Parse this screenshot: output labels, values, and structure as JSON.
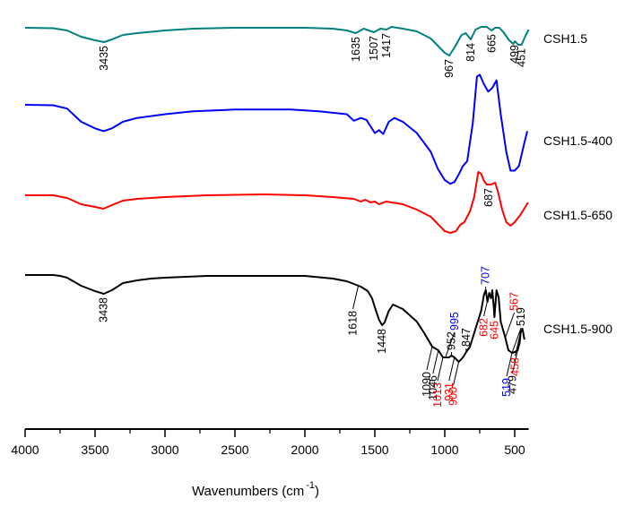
{
  "chart_data": {
    "type": "line",
    "title": "",
    "xlabel": "Wavenumbers (cm",
    "xlabel_superscript": "-1",
    "xlabel_suffix": ")",
    "ylabel": "",
    "xlim": [
      4000,
      400
    ],
    "x_reversed": true,
    "grid": false,
    "legend": "right, labels next to each trace",
    "x_ticks": [
      4000,
      3500,
      3000,
      2500,
      2000,
      1500,
      1000,
      500
    ],
    "x_minor_ticks": [
      3750,
      3250,
      2750,
      2250,
      1750,
      1250,
      750
    ],
    "x_tick_labels": [
      "4000",
      "3500",
      "3000",
      "2500",
      "2000",
      "1500",
      "1000",
      "500"
    ],
    "series": [
      {
        "name": "CSH1.5",
        "color": "#008080",
        "offset": 0,
        "points": [
          [
            4000,
            0
          ],
          [
            3800,
            -0.5
          ],
          [
            3700,
            -3
          ],
          [
            3600,
            -10
          ],
          [
            3500,
            -14
          ],
          [
            3435,
            -16
          ],
          [
            3380,
            -13
          ],
          [
            3300,
            -8
          ],
          [
            3200,
            -6
          ],
          [
            3000,
            -3
          ],
          [
            2800,
            -1
          ],
          [
            2500,
            0
          ],
          [
            2000,
            0
          ],
          [
            1800,
            -1
          ],
          [
            1700,
            -3
          ],
          [
            1635,
            -6
          ],
          [
            1580,
            -1
          ],
          [
            1507,
            -5
          ],
          [
            1460,
            -1
          ],
          [
            1417,
            -2
          ],
          [
            1380,
            1
          ],
          [
            1300,
            -1
          ],
          [
            1200,
            -4
          ],
          [
            1100,
            -12
          ],
          [
            1050,
            -20
          ],
          [
            1000,
            -28
          ],
          [
            967,
            -31
          ],
          [
            930,
            -22
          ],
          [
            880,
            -8
          ],
          [
            850,
            -6
          ],
          [
            814,
            -13
          ],
          [
            780,
            -2
          ],
          [
            740,
            1
          ],
          [
            700,
            1
          ],
          [
            665,
            -3
          ],
          [
            640,
            0
          ],
          [
            610,
            0
          ],
          [
            580,
            -5
          ],
          [
            540,
            -14
          ],
          [
            510,
            -18
          ],
          [
            499,
            -15
          ],
          [
            475,
            -19
          ],
          [
            451,
            -19
          ],
          [
            420,
            -8
          ],
          [
            400,
            -2
          ]
        ],
        "annotations": [
          {
            "x": 3435,
            "label": "3435",
            "color": "#000000",
            "side": "below"
          },
          {
            "x": 1635,
            "label": "1635",
            "color": "#000000",
            "side": "below"
          },
          {
            "x": 1507,
            "label": "1507",
            "color": "#000000",
            "side": "below"
          },
          {
            "x": 1417,
            "label": "1417",
            "color": "#000000",
            "side": "below"
          },
          {
            "x": 967,
            "label": "967",
            "color": "#000000",
            "side": "below"
          },
          {
            "x": 814,
            "label": "814",
            "color": "#000000",
            "side": "below"
          },
          {
            "x": 665,
            "label": "665",
            "color": "#000000",
            "side": "below"
          },
          {
            "x": 499,
            "label": "499",
            "color": "#000000",
            "side": "below"
          },
          {
            "x": 451,
            "label": "451",
            "color": "#000000",
            "side": "below"
          }
        ]
      },
      {
        "name": "CSH1.5-400",
        "color": "#0000ff",
        "offset": 0,
        "points": [
          [
            4000,
            0
          ],
          [
            3800,
            -0.5
          ],
          [
            3700,
            -4
          ],
          [
            3600,
            -18
          ],
          [
            3500,
            -25
          ],
          [
            3440,
            -28
          ],
          [
            3380,
            -25
          ],
          [
            3300,
            -18
          ],
          [
            3200,
            -14
          ],
          [
            3000,
            -10
          ],
          [
            2800,
            -7
          ],
          [
            2500,
            -5
          ],
          [
            2100,
            -5
          ],
          [
            1900,
            -7
          ],
          [
            1700,
            -10
          ],
          [
            1650,
            -17
          ],
          [
            1600,
            -14
          ],
          [
            1560,
            -16
          ],
          [
            1500,
            -30
          ],
          [
            1470,
            -27
          ],
          [
            1440,
            -31
          ],
          [
            1400,
            -18
          ],
          [
            1360,
            -14
          ],
          [
            1300,
            -18
          ],
          [
            1200,
            -30
          ],
          [
            1100,
            -50
          ],
          [
            1050,
            -68
          ],
          [
            1000,
            -80
          ],
          [
            960,
            -84
          ],
          [
            930,
            -82
          ],
          [
            900,
            -74
          ],
          [
            870,
            -65
          ],
          [
            840,
            -60
          ],
          [
            800,
            -20
          ],
          [
            770,
            30
          ],
          [
            750,
            32
          ],
          [
            720,
            22
          ],
          [
            690,
            14
          ],
          [
            660,
            18
          ],
          [
            630,
            26
          ],
          [
            600,
            -10
          ],
          [
            560,
            -50
          ],
          [
            530,
            -70
          ],
          [
            500,
            -70
          ],
          [
            470,
            -65
          ],
          [
            430,
            -40
          ],
          [
            410,
            -28
          ]
        ],
        "annotations": []
      },
      {
        "name": "CSH1.5-650",
        "color": "#ff0000",
        "offset": 0,
        "points": [
          [
            4000,
            0
          ],
          [
            3800,
            0
          ],
          [
            3700,
            -3
          ],
          [
            3600,
            -10
          ],
          [
            3500,
            -13
          ],
          [
            3440,
            -15
          ],
          [
            3380,
            -11
          ],
          [
            3300,
            -6
          ],
          [
            3200,
            -4
          ],
          [
            3000,
            -2
          ],
          [
            2700,
            0
          ],
          [
            2300,
            1
          ],
          [
            2000,
            0
          ],
          [
            1800,
            -2
          ],
          [
            1650,
            -4
          ],
          [
            1600,
            -7
          ],
          [
            1570,
            -5
          ],
          [
            1530,
            -8
          ],
          [
            1500,
            -7
          ],
          [
            1470,
            -10
          ],
          [
            1420,
            -7
          ],
          [
            1380,
            -8
          ],
          [
            1300,
            -10
          ],
          [
            1200,
            -16
          ],
          [
            1100,
            -24
          ],
          [
            1050,
            -32
          ],
          [
            1000,
            -40
          ],
          [
            960,
            -42
          ],
          [
            920,
            -40
          ],
          [
            890,
            -33
          ],
          [
            860,
            -30
          ],
          [
            820,
            -18
          ],
          [
            790,
            -2
          ],
          [
            760,
            26
          ],
          [
            740,
            24
          ],
          [
            720,
            16
          ],
          [
            700,
            12
          ],
          [
            670,
            12
          ],
          [
            640,
            14
          ],
          [
            620,
            4
          ],
          [
            590,
            -16
          ],
          [
            560,
            -30
          ],
          [
            530,
            -34
          ],
          [
            500,
            -30
          ],
          [
            460,
            -22
          ],
          [
            420,
            -12
          ],
          [
            405,
            -8
          ]
        ],
        "annotations": [
          {
            "x": 687,
            "label": "687",
            "color": "#000000",
            "side": "below"
          }
        ]
      },
      {
        "name": "CSH1.5-900",
        "color": "#000000",
        "offset": 0,
        "points": [
          [
            4000,
            0
          ],
          [
            3800,
            0
          ],
          [
            3750,
            -1
          ],
          [
            3700,
            -3
          ],
          [
            3600,
            -12
          ],
          [
            3500,
            -18
          ],
          [
            3438,
            -21
          ],
          [
            3380,
            -17
          ],
          [
            3300,
            -9
          ],
          [
            3200,
            -6
          ],
          [
            3100,
            -4
          ],
          [
            3000,
            -3
          ],
          [
            2700,
            -1
          ],
          [
            2300,
            -1
          ],
          [
            2000,
            -1
          ],
          [
            1800,
            -4
          ],
          [
            1700,
            -7
          ],
          [
            1600,
            -13
          ],
          [
            1550,
            -18
          ],
          [
            1520,
            -26
          ],
          [
            1500,
            -36
          ],
          [
            1470,
            -50
          ],
          [
            1448,
            -56
          ],
          [
            1430,
            -53
          ],
          [
            1400,
            -40
          ],
          [
            1370,
            -33
          ],
          [
            1300,
            -38
          ],
          [
            1200,
            -52
          ],
          [
            1150,
            -64
          ],
          [
            1090,
            -80
          ],
          [
            1046,
            -84
          ],
          [
            1013,
            -92
          ],
          [
            995,
            -92
          ],
          [
            970,
            -92
          ],
          [
            952,
            -90
          ],
          [
            931,
            -92
          ],
          [
            900,
            -97
          ],
          [
            870,
            -92
          ],
          [
            847,
            -86
          ],
          [
            820,
            -80
          ],
          [
            780,
            -60
          ],
          [
            740,
            -40
          ],
          [
            720,
            -22
          ],
          [
            707,
            -17
          ],
          [
            695,
            -30
          ],
          [
            682,
            -20
          ],
          [
            670,
            -26
          ],
          [
            660,
            -17
          ],
          [
            650,
            -35
          ],
          [
            645,
            -47
          ],
          [
            630,
            -17
          ],
          [
            615,
            -25
          ],
          [
            600,
            -52
          ],
          [
            567,
            -70
          ],
          [
            545,
            -84
          ],
          [
            519,
            -87
          ],
          [
            500,
            -86
          ],
          [
            479,
            -84
          ],
          [
            465,
            -76
          ],
          [
            458,
            -64
          ],
          [
            445,
            -60
          ],
          [
            430,
            -72
          ]
        ],
        "annotations": [
          {
            "x": 3438,
            "label": "3438",
            "color": "#000000",
            "side": "below"
          },
          {
            "x": 1618,
            "label": "1618",
            "color": "#000000",
            "side": "leader"
          },
          {
            "x": 1448,
            "label": "1448",
            "color": "#000000",
            "side": "below"
          },
          {
            "x": 1090,
            "label": "1090",
            "color": "#000000",
            "side": "leader"
          },
          {
            "x": 1046,
            "label": "1046",
            "color": "#000000",
            "side": "leader"
          },
          {
            "x": 1013,
            "label": "1013",
            "color": "#ff0000",
            "side": "leader"
          },
          {
            "x": 995,
            "label": "995",
            "color": "#0000ff",
            "side": "above-leader"
          },
          {
            "x": 952,
            "label": "952",
            "color": "#000000",
            "side": "above"
          },
          {
            "x": 931,
            "label": "931",
            "color": "#ff0000",
            "side": "leader"
          },
          {
            "x": 900,
            "label": "900",
            "color": "#ff0000",
            "side": "leader"
          },
          {
            "x": 847,
            "label": "847",
            "color": "#000000",
            "side": "above"
          },
          {
            "x": 707,
            "label": "707",
            "color": "#0000ff",
            "side": "above"
          },
          {
            "x": 682,
            "label": "682",
            "color": "#ff0000",
            "side": "leader"
          },
          {
            "x": 645,
            "label": "645",
            "color": "#ff0000",
            "side": "below"
          },
          {
            "x": 519,
            "label": "519",
            "color": "#000000",
            "side": "above-leader"
          },
          {
            "x": 567,
            "label": "567",
            "color": "#ff0000",
            "side": "above-leader"
          },
          {
            "x": 519,
            "label": "519",
            "color": "#0000ff",
            "side": "leader"
          },
          {
            "x": 479,
            "label": "479",
            "color": "#000000",
            "side": "leader"
          },
          {
            "x": 458,
            "label": "458",
            "color": "#ff0000",
            "side": "leader"
          }
        ]
      }
    ]
  }
}
